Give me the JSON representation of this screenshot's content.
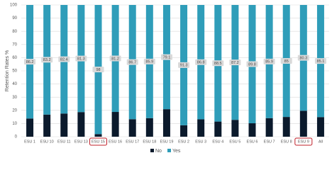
{
  "chart_data": {
    "type": "stacked-bar",
    "y_label": "Retention Rates %",
    "categories": [
      "ESU 1",
      "ESU 10",
      "ESU 11",
      "ESU 13",
      "ESU 15",
      "ESU 16",
      "ESU 17",
      "ESU 18",
      "ESU 19",
      "ESU 2",
      "ESU 3",
      "ESU 4",
      "ESU 5",
      "ESU 6",
      "ESU 7",
      "ESU 8",
      "ESU 9",
      "All"
    ],
    "series": [
      {
        "name": "No",
        "color": "#0b1a2c",
        "values": [
          13.8,
          16.8,
          17.6,
          18.7,
          2,
          18.8,
          13.3,
          14.1,
          20.9,
          8.7,
          13.2,
          11.5,
          12.8,
          10.2,
          14.1,
          15,
          19.7,
          14.9
        ],
        "data_labels": false
      },
      {
        "name": "Yes",
        "color": "#2f9db9",
        "values": [
          86.2,
          83.2,
          82.4,
          81.3,
          98,
          81.2,
          86.7,
          85.9,
          79.1,
          91.3,
          86.8,
          88.5,
          87.2,
          89.8,
          85.9,
          85,
          80.3,
          85.1
        ],
        "data_labels": true
      }
    ],
    "ylim": [
      0,
      100
    ],
    "yticks": [
      0,
      10,
      20,
      30,
      40,
      50,
      60,
      70,
      80,
      90,
      100
    ],
    "grid": true,
    "legend": "bottom",
    "highlight": [
      4,
      16
    ],
    "highlight_color": "#c0202a"
  }
}
